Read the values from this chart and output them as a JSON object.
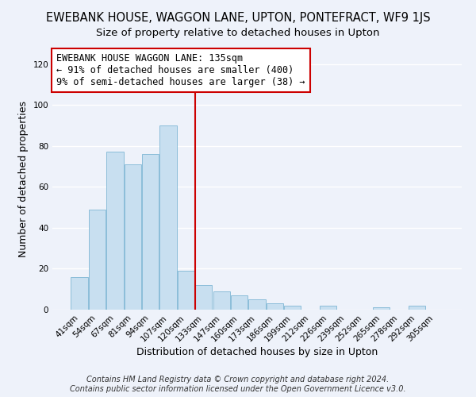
{
  "title": "EWEBANK HOUSE, WAGGON LANE, UPTON, PONTEFRACT, WF9 1JS",
  "subtitle": "Size of property relative to detached houses in Upton",
  "xlabel": "Distribution of detached houses by size in Upton",
  "ylabel": "Number of detached properties",
  "bar_color": "#c8dff0",
  "bar_edge_color": "#8bbdd9",
  "categories": [
    "41sqm",
    "54sqm",
    "67sqm",
    "81sqm",
    "94sqm",
    "107sqm",
    "120sqm",
    "133sqm",
    "147sqm",
    "160sqm",
    "173sqm",
    "186sqm",
    "199sqm",
    "212sqm",
    "226sqm",
    "239sqm",
    "252sqm",
    "265sqm",
    "278sqm",
    "292sqm",
    "305sqm"
  ],
  "values": [
    16,
    49,
    77,
    71,
    76,
    90,
    19,
    12,
    9,
    7,
    5,
    3,
    2,
    0,
    2,
    0,
    0,
    1,
    0,
    2,
    0
  ],
  "ylim": [
    0,
    128
  ],
  "yticks": [
    0,
    20,
    40,
    60,
    80,
    100,
    120
  ],
  "reference_line_index": 7,
  "reference_line_color": "#cc0000",
  "annotation_line1": "EWEBANK HOUSE WAGGON LANE: 135sqm",
  "annotation_line2": "← 91% of detached houses are smaller (400)",
  "annotation_line3": "9% of semi-detached houses are larger (38) →",
  "annotation_box_color": "#ffffff",
  "annotation_box_edge_color": "#cc0000",
  "footer_line1": "Contains HM Land Registry data © Crown copyright and database right 2024.",
  "footer_line2": "Contains public sector information licensed under the Open Government Licence v3.0.",
  "background_color": "#eef2fa",
  "grid_color": "#ffffff",
  "title_fontsize": 10.5,
  "subtitle_fontsize": 9.5,
  "axis_label_fontsize": 9,
  "tick_fontsize": 7.5,
  "annotation_fontsize": 8.5,
  "footer_fontsize": 7
}
